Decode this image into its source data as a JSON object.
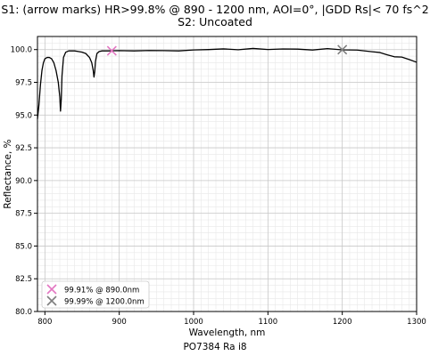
{
  "chart_data": {
    "type": "line",
    "title": "S1: (arrow marks) HR>99.8% @ 890 - 1200 nm, AOI=0°, |GDD Rs|< 70 fs^2",
    "subtitle": "S2: Uncoated",
    "xlabel": "Wavelength, nm",
    "ylabel": "Reflectance, %",
    "footer": "PO7384 Ra i8",
    "xlim": [
      790,
      1300
    ],
    "ylim": [
      80.0,
      101.0
    ],
    "xticks": [
      800,
      900,
      1000,
      1100,
      1200,
      1300
    ],
    "yticks": [
      80.0,
      82.5,
      85.0,
      87.5,
      90.0,
      92.5,
      95.0,
      97.5,
      100.0
    ],
    "xtick_labels": [
      "800",
      "900",
      "1000",
      "1100",
      "1200",
      "1300"
    ],
    "ytick_labels": [
      "80.0",
      "82.5",
      "85.0",
      "87.5",
      "90.0",
      "92.5",
      "95.0",
      "97.5",
      "100.0"
    ],
    "grid": true,
    "legend_position": "bottom-left",
    "series": [
      {
        "color": "#000000",
        "x": [
          790,
          792,
          794,
          796,
          798,
          800,
          803,
          806,
          809,
          812,
          815,
          818,
          820,
          821,
          822,
          823,
          825,
          828,
          832,
          836,
          840,
          845,
          850,
          855,
          860,
          863,
          865,
          866,
          867,
          868,
          870,
          873,
          877,
          881,
          885,
          890,
          900,
          920,
          940,
          960,
          980,
          1000,
          1020,
          1040,
          1060,
          1080,
          1100,
          1120,
          1140,
          1160,
          1180,
          1200,
          1220,
          1240,
          1250,
          1260,
          1270,
          1280,
          1290,
          1300
        ],
        "y": [
          94.7,
          95.8,
          97.3,
          98.4,
          99.0,
          99.3,
          99.4,
          99.4,
          99.3,
          99.0,
          98.4,
          97.5,
          96.4,
          95.3,
          96.2,
          98.0,
          99.4,
          99.8,
          99.9,
          99.9,
          99.9,
          99.85,
          99.8,
          99.7,
          99.4,
          99.0,
          98.4,
          97.9,
          98.3,
          99.1,
          99.7,
          99.85,
          99.9,
          99.9,
          99.9,
          99.91,
          99.92,
          99.9,
          99.93,
          99.92,
          99.9,
          99.95,
          99.97,
          99.98,
          100.0,
          100.0,
          100.0,
          100.0,
          99.98,
          99.97,
          99.99,
          99.99,
          99.9,
          99.8,
          99.7,
          99.6,
          99.45,
          99.35,
          99.2,
          99.05
        ]
      }
    ],
    "markers": [
      {
        "x": 890.0,
        "y": 99.91,
        "color": "#e377c2",
        "label": "99.91% @ 890.0nm"
      },
      {
        "x": 1200.0,
        "y": 99.99,
        "color": "#7f7f7f",
        "label": "99.99% @ 1200.0nm"
      }
    ]
  }
}
